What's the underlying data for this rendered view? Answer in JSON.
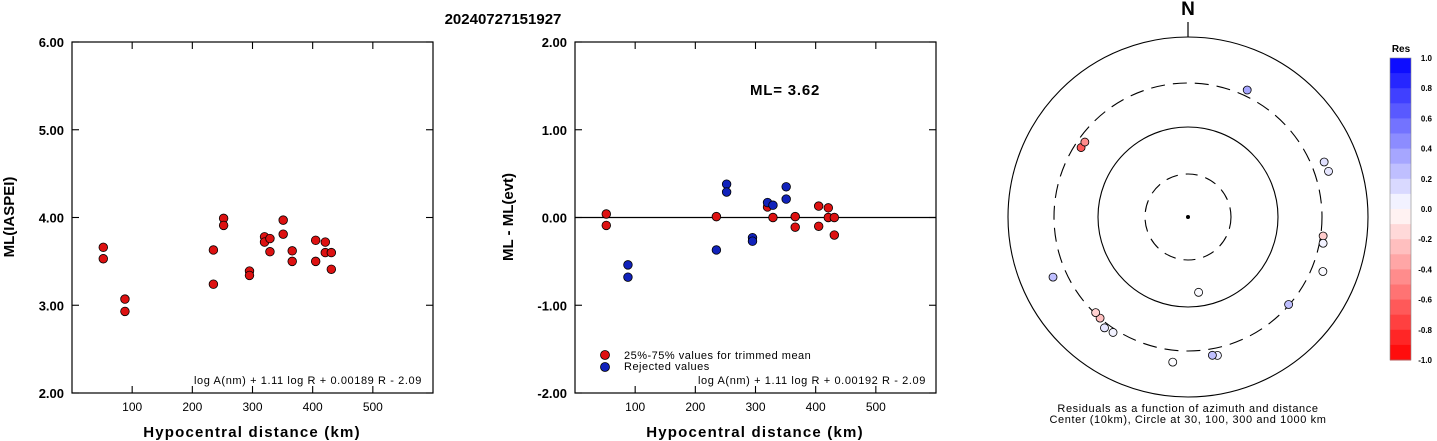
{
  "title": "20240727151927",
  "chart_data": [
    {
      "type": "scatter",
      "name": "ml-vs-distance",
      "xlabel": "Hypocentral distance (km)",
      "ylabel": "ML(IASPEI)",
      "xlim": [
        0,
        600
      ],
      "ylim": [
        2.0,
        6.0
      ],
      "x_ticks": [
        "100",
        "200",
        "300",
        "400",
        "500"
      ],
      "y_ticks": [
        "2.00",
        "3.00",
        "4.00",
        "5.00",
        "6.00"
      ],
      "formula": "log A(nm) + 1.11 log R + 0.00189 R - 2.09",
      "color": "#dd1111",
      "points": [
        {
          "x": 52,
          "y": 3.66
        },
        {
          "x": 52,
          "y": 3.53
        },
        {
          "x": 88,
          "y": 3.07
        },
        {
          "x": 88,
          "y": 2.93
        },
        {
          "x": 235,
          "y": 3.63
        },
        {
          "x": 235,
          "y": 3.24
        },
        {
          "x": 252,
          "y": 3.99
        },
        {
          "x": 252,
          "y": 3.91
        },
        {
          "x": 295,
          "y": 3.39
        },
        {
          "x": 295,
          "y": 3.34
        },
        {
          "x": 320,
          "y": 3.78
        },
        {
          "x": 320,
          "y": 3.72
        },
        {
          "x": 329,
          "y": 3.76
        },
        {
          "x": 329,
          "y": 3.61
        },
        {
          "x": 351,
          "y": 3.97
        },
        {
          "x": 351,
          "y": 3.81
        },
        {
          "x": 366,
          "y": 3.62
        },
        {
          "x": 366,
          "y": 3.5
        },
        {
          "x": 405,
          "y": 3.74
        },
        {
          "x": 405,
          "y": 3.5
        },
        {
          "x": 421,
          "y": 3.72
        },
        {
          "x": 421,
          "y": 3.6
        },
        {
          "x": 431,
          "y": 3.6
        },
        {
          "x": 431,
          "y": 3.41
        }
      ]
    },
    {
      "type": "scatter",
      "name": "residual-vs-distance",
      "xlabel": "Hypocentral distance (km)",
      "ylabel": "ML - ML(evt)",
      "xlim": [
        0,
        600
      ],
      "ylim": [
        -2.0,
        2.0
      ],
      "x_ticks": [
        "100",
        "200",
        "300",
        "400",
        "500"
      ],
      "y_ticks": [
        "-2.00",
        "-1.00",
        "0.00",
        "1.00",
        "2.00"
      ],
      "annotation": "ML= 3.62",
      "formula": "log A(nm) + 1.11 log R + 0.00192 R - 2.09",
      "legend": [
        {
          "label": "25%-75% values for trimmed mean",
          "color": "#dd1111"
        },
        {
          "label": "Rejected values",
          "color": "#1122bb"
        }
      ],
      "series": [
        {
          "name": "25%-75% values for trimmed mean",
          "color": "#dd1111",
          "points": [
            {
              "x": 52,
              "y": 0.04
            },
            {
              "x": 52,
              "y": -0.09
            },
            {
              "x": 235,
              "y": 0.01
            },
            {
              "x": 320,
              "y": 0.12
            },
            {
              "x": 329,
              "y": 0.0
            },
            {
              "x": 366,
              "y": 0.01
            },
            {
              "x": 366,
              "y": -0.11
            },
            {
              "x": 405,
              "y": 0.13
            },
            {
              "x": 405,
              "y": -0.1
            },
            {
              "x": 421,
              "y": 0.11
            },
            {
              "x": 421,
              "y": 0.0
            },
            {
              "x": 431,
              "y": 0.0
            },
            {
              "x": 431,
              "y": -0.2
            }
          ]
        },
        {
          "name": "Rejected values",
          "color": "#1122bb",
          "points": [
            {
              "x": 88,
              "y": -0.54
            },
            {
              "x": 88,
              "y": -0.68
            },
            {
              "x": 235,
              "y": -0.37
            },
            {
              "x": 252,
              "y": 0.38
            },
            {
              "x": 252,
              "y": 0.29
            },
            {
              "x": 295,
              "y": -0.23
            },
            {
              "x": 295,
              "y": -0.27
            },
            {
              "x": 320,
              "y": 0.17
            },
            {
              "x": 329,
              "y": 0.14
            },
            {
              "x": 351,
              "y": 0.35
            },
            {
              "x": 351,
              "y": 0.21
            }
          ]
        }
      ]
    },
    {
      "type": "scatter",
      "name": "azimuth-residual-map",
      "north_label": "N",
      "caption_1": "Residuals as a function of azimuth and distance",
      "caption_2": "Center (10km), Circle at 30, 100, 300 and 1000 km",
      "colorbar": {
        "title": "Res",
        "ticks": [
          "1.0",
          "0.8",
          "0.6",
          "0.4",
          "0.2",
          "0.0",
          "-0.2",
          "-0.4",
          "-0.6",
          "-0.8",
          "-1.0"
        ],
        "positive_color": "#0000ff",
        "negative_color": "#ff0000"
      },
      "stations": [
        {
          "az": 25,
          "dist": 352,
          "res": 0.35
        },
        {
          "az": 68,
          "dist": 420,
          "res": 0.12
        },
        {
          "az": 72,
          "dist": 430,
          "res": 0.1
        },
        {
          "az": 98,
          "dist": 320,
          "res": -0.2
        },
        {
          "az": 101,
          "dist": 330,
          "res": 0.05
        },
        {
          "az": 112,
          "dist": 405,
          "res": 0.02
        },
        {
          "az": 131,
          "dist": 295,
          "res": 0.25
        },
        {
          "az": 172,
          "dist": 70,
          "res": 0.02
        },
        {
          "az": 168,
          "dist": 365,
          "res": 0.08
        },
        {
          "az": 170,
          "dist": 355,
          "res": 0.25
        },
        {
          "az": 186,
          "dist": 410,
          "res": 0.01
        },
        {
          "az": 213,
          "dist": 330,
          "res": 0.05
        },
        {
          "az": 217,
          "dist": 340,
          "res": 0.1
        },
        {
          "az": 221,
          "dist": 300,
          "res": -0.25
        },
        {
          "az": 224,
          "dist": 292,
          "res": -0.18
        },
        {
          "az": 246,
          "dist": 430,
          "res": 0.25
        },
        {
          "az": 303,
          "dist": 255,
          "res": -0.65
        },
        {
          "az": 306,
          "dist": 255,
          "res": -0.45
        }
      ]
    }
  ]
}
